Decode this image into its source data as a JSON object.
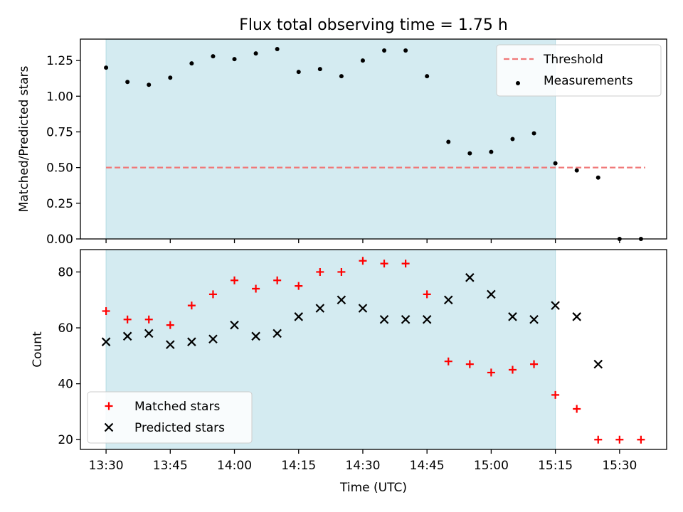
{
  "chart_data": {
    "title": "Flux total observing time = 1.75 h",
    "shaded_interval": [
      "13:30",
      "15:15"
    ],
    "shade_color": "#d4ebf1",
    "x_axis": {
      "label": "Time (UTC)",
      "range": [
        "13:24",
        "15:41"
      ],
      "ticks": [
        "13:30",
        "13:45",
        "14:00",
        "14:15",
        "14:30",
        "14:45",
        "15:00",
        "15:15",
        "15:30"
      ]
    },
    "panels": [
      {
        "type": "scatter",
        "ylabel": "Matched/Predicted stars",
        "ylim": [
          0,
          1.4
        ],
        "yticks": [
          "0.00",
          "0.25",
          "0.50",
          "0.75",
          "1.00",
          "1.25"
        ],
        "legend_position": "top-right",
        "series": [
          {
            "name": "Threshold",
            "kind": "dashed-line",
            "color": "#f07878",
            "x": [
              "13:30",
              "15:36"
            ],
            "y": [
              0.5,
              0.5
            ]
          },
          {
            "name": "Measurements",
            "kind": "dot",
            "color": "#000000",
            "x": [
              "13:30",
              "13:35",
              "13:40",
              "13:45",
              "13:50",
              "13:55",
              "14:00",
              "14:05",
              "14:10",
              "14:15",
              "14:20",
              "14:25",
              "14:30",
              "14:35",
              "14:40",
              "14:45",
              "14:50",
              "14:55",
              "15:00",
              "15:05",
              "15:10",
              "15:15",
              "15:20",
              "15:25",
              "15:30",
              "15:35"
            ],
            "y": [
              1.2,
              1.1,
              1.08,
              1.13,
              1.23,
              1.28,
              1.26,
              1.3,
              1.33,
              1.17,
              1.19,
              1.14,
              1.25,
              1.32,
              1.32,
              1.14,
              0.68,
              0.6,
              0.61,
              0.7,
              0.74,
              0.53,
              0.48,
              0.43,
              0.0,
              0.0
            ]
          }
        ]
      },
      {
        "type": "scatter",
        "ylabel": "Count",
        "ylim": [
          16.5,
          88
        ],
        "yticks": [
          "20",
          "40",
          "60",
          "80"
        ],
        "legend_position": "bottom-left",
        "series": [
          {
            "name": "Matched stars",
            "kind": "plus",
            "color": "#ff0000",
            "x": [
              "13:30",
              "13:35",
              "13:40",
              "13:45",
              "13:50",
              "13:55",
              "14:00",
              "14:05",
              "14:10",
              "14:15",
              "14:20",
              "14:25",
              "14:30",
              "14:35",
              "14:40",
              "14:45",
              "14:50",
              "14:55",
              "15:00",
              "15:05",
              "15:10",
              "15:15",
              "15:20",
              "15:25",
              "15:30",
              "15:35"
            ],
            "y": [
              66,
              63,
              63,
              61,
              68,
              72,
              77,
              74,
              77,
              75,
              80,
              80,
              84,
              83,
              83,
              72,
              48,
              47,
              44,
              45,
              47,
              36,
              31,
              20,
              20,
              20
            ]
          },
          {
            "name": "Predicted stars",
            "kind": "x",
            "color": "#000000",
            "x": [
              "13:30",
              "13:35",
              "13:40",
              "13:45",
              "13:50",
              "13:55",
              "14:00",
              "14:05",
              "14:10",
              "14:15",
              "14:20",
              "14:25",
              "14:30",
              "14:35",
              "14:40",
              "14:45",
              "14:50",
              "14:55",
              "15:00",
              "15:05",
              "15:10",
              "15:15",
              "15:20",
              "15:25"
            ],
            "y": [
              55,
              57,
              58,
              54,
              55,
              56,
              61,
              57,
              58,
              64,
              67,
              70,
              67,
              63,
              63,
              63,
              70,
              78,
              72,
              64,
              63,
              68,
              64,
              47
            ]
          }
        ]
      }
    ]
  }
}
